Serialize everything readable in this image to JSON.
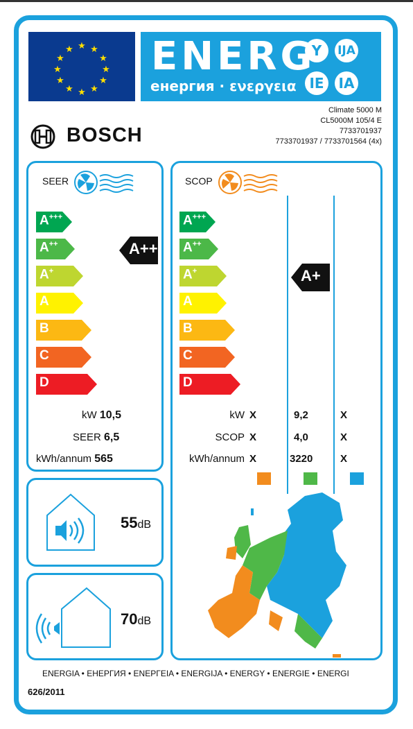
{
  "header": {
    "energy_word": "ENERG",
    "energy_languages": "енергия · ενεργεια",
    "suffix_circles": [
      "Y",
      "IJA",
      "IE",
      "IA"
    ],
    "model_lines": [
      "Climate 5000 M",
      "CL5000M 105/4 E",
      "7733701937",
      "7733701937 / 7733701564 (4x)"
    ],
    "brand": "BOSCH"
  },
  "seer": {
    "title": "SEER",
    "classes": [
      "A+++",
      "A++",
      "A+",
      "A",
      "B",
      "C",
      "D"
    ],
    "rating": "A++",
    "rows": [
      {
        "label": "kW",
        "value": "10,5"
      },
      {
        "label": "SEER",
        "value": "6,5"
      },
      {
        "label": "kWh/annum",
        "value": "565"
      }
    ]
  },
  "scop": {
    "title": "SCOP",
    "classes": [
      "A+++",
      "A++",
      "A+",
      "A",
      "B",
      "C",
      "D"
    ],
    "rating": "A+",
    "rows": [
      {
        "label": "kW",
        "cols": [
          "X",
          "9,2",
          "X"
        ]
      },
      {
        "label": "SCOP",
        "cols": [
          "X",
          "4,0",
          "X"
        ]
      },
      {
        "label": "kWh/annum",
        "cols": [
          "X",
          "3220",
          "X"
        ]
      }
    ],
    "zone_colors": [
      "#f28c1e",
      "#4fb848",
      "#1ba1dd"
    ]
  },
  "noise_indoor": {
    "value": "55",
    "unit": "dB"
  },
  "noise_outdoor": {
    "value": "70",
    "unit": "dB"
  },
  "footer": {
    "languages": "ENERGIA • ЕНЕРГИЯ • ΕΝΕΡΓΕΙΑ • ENERGIJA • ENERGY • ENERGIE • ENERGI",
    "regulation": "626/2011"
  },
  "class_colors": [
    "#00a651",
    "#4cb848",
    "#bed630",
    "#fff200",
    "#fcb813",
    "#f26522",
    "#ed1c24"
  ]
}
